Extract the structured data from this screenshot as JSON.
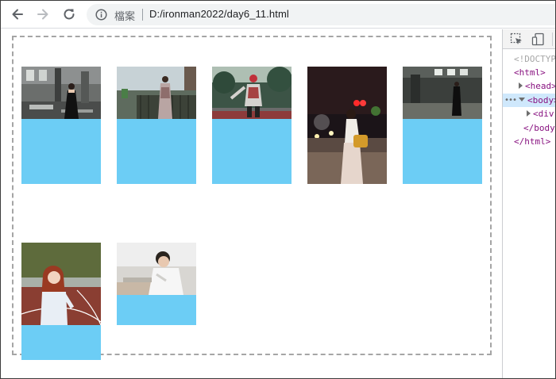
{
  "browser": {
    "file_label": "檔案",
    "url": "D:/ironman2022/day6_11.html",
    "icons": [
      "back-arrow-icon",
      "forward-arrow-icon",
      "reload-icon",
      "info-icon"
    ]
  },
  "page": {
    "container_border": "dashed #a5a5a5",
    "box_color": "#6ccdf5",
    "items": [
      {
        "name": "photo-1",
        "scene": "woman in dark dress in abandoned building"
      },
      {
        "name": "photo-2",
        "scene": "woman in floral dress on rooftop"
      },
      {
        "name": "photo-3",
        "scene": "woman in red hat in park"
      },
      {
        "name": "photo-4",
        "scene": "woman with yellow bag at night street"
      },
      {
        "name": "photo-5",
        "scene": "woman standing in abandoned hall"
      },
      {
        "name": "photo-6",
        "scene": "red-haired girl on running track"
      },
      {
        "name": "photo-7",
        "scene": "man in white shirt on balcony"
      }
    ]
  },
  "devtools": {
    "dom": [
      {
        "text": "<!DOCTYPE",
        "style": "gray"
      },
      {
        "text": "<html>"
      },
      {
        "text": "<head>",
        "collapsed": true
      },
      {
        "text": "<body>",
        "expanded": true,
        "selected": true
      },
      {
        "text": "<div",
        "collapsed": true
      },
      {
        "text": "</body"
      },
      {
        "text": "</html>"
      }
    ]
  }
}
